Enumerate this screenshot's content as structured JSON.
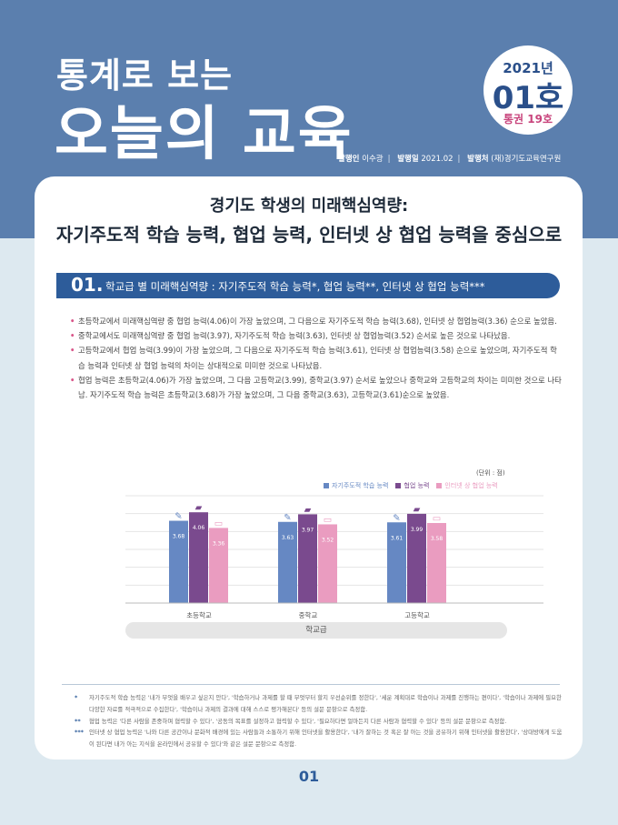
{
  "header": {
    "title_line1": "통계로 보는",
    "title_line2": "오늘의 교육",
    "issue_year": "2021년",
    "issue_no": "01호",
    "issue_total": "통권 19호",
    "publisher_label": "발행인",
    "publisher": "이수광",
    "date_label": "발행일",
    "date": "2021.02",
    "org_label": "발행처",
    "org": "(재)경기도교육연구원"
  },
  "headline": {
    "line1": "경기도 학생의 미래핵심역량:",
    "line2": "자기주도적 학습 능력, 협업 능력, 인터넷 상 협업 능력을 중심으로"
  },
  "section": {
    "number": "01.",
    "title": "학교급 별 미래핵심역량 : 자기주도적 학습 능력*, 협업 능력**, 인터넷 상 협업 능력***"
  },
  "bullets": [
    "초등학교에서 미래핵심역량 중 협업 능력(4.06)이 가장 높았으며, 그 다음으로 자기주도적 학습 능력(3.68), 인터넷 상 협업능력(3.36) 순으로 높았음.",
    "중학교에서도 미래핵심역량 중 협업 능력(3.97), 자기주도적 학습 능력(3.63), 인터넷 상 협업능력(3.52) 순서로 높은 것으로 나타났음.",
    "고등학교에서 협업 능력(3.99)이 가장 높았으며, 그 다음으로 자기주도적 학습 능력(3.61), 인터넷 상 협업능력(3.58) 순으로 높았으며, 자기주도적 학습 능력과 인터넷 상 협업 능력의 차이는 상대적으로 미미한 것으로 나타났음.",
    "협업 능력은 초등학교(4.06)가 가장 높았으며, 그 다음 고등학교(3.99), 중학교(3.97) 순서로 높았으나 중학교와 고등학교의 차이는 미미한 것으로 나타남. 자기주도적 학습 능력은 초등학교(3.68)가 가장 높았으며, 그 다음 중학교(3.63), 고등학교(3.61)순으로 높았음."
  ],
  "chart_data": {
    "type": "bar",
    "unit": "(단위 : 점)",
    "categories": [
      "초등학교",
      "중학교",
      "고등학교"
    ],
    "xlabel": "학교급",
    "series": [
      {
        "name": "자기주도적 학습 능력",
        "color": "#6688c3",
        "values": [
          3.68,
          3.63,
          3.61
        ]
      },
      {
        "name": "협업 능력",
        "color": "#7a4a8e",
        "values": [
          4.06,
          3.97,
          3.99
        ]
      },
      {
        "name": "인터넷 상 협업 능력",
        "color": "#ea9cc0",
        "values": [
          3.36,
          3.52,
          3.58
        ]
      }
    ],
    "ylim": [
      0,
      4.8
    ],
    "grid": true,
    "legend": "top-right"
  },
  "footnotes": [
    {
      "mark": "*",
      "text": "자기주도적 학습 능력은 '내가 무엇을 배우고 싶은지 안다', '학습하거나 과제를 할 때 무엇부터 할지 우선순위를 정한다', '세운 계획대로 학습이나 과제를 진행하는 편이다', '학습이나 과제에 필요한 다양한 자료를 적극적으로 수집한다', '학습이나 과제의 결과에 대해 스스로 평가해본다' 등의 설문 문항으로 측정함."
    },
    {
      "mark": "**",
      "text": "협업 능력은 '다른 사람을 존중하며 협력할 수 있다', '공동의 목표를 설정하고 협력할 수 있다', '필요하다면 얼마든지 다른 사람과 협력할 수 있다' 등의 설문 문항으로 측정함."
    },
    {
      "mark": "***",
      "text": "인터넷 상 협업 능력은 '나와 다른 공간이나 문화적 배경에 있는 사람들과 소통하기 위해 인터넷을 활용한다', '내가 잘하는 것 혹은 잘 아는 것을 공유하기 위해 인터넷을 활용한다', '상대방에게 도움이 된다면 내가 아는 지식을 온라인에서 공유할 수 있다'와 같은 설문 문항으로 측정함."
    }
  ],
  "page_number": "01"
}
